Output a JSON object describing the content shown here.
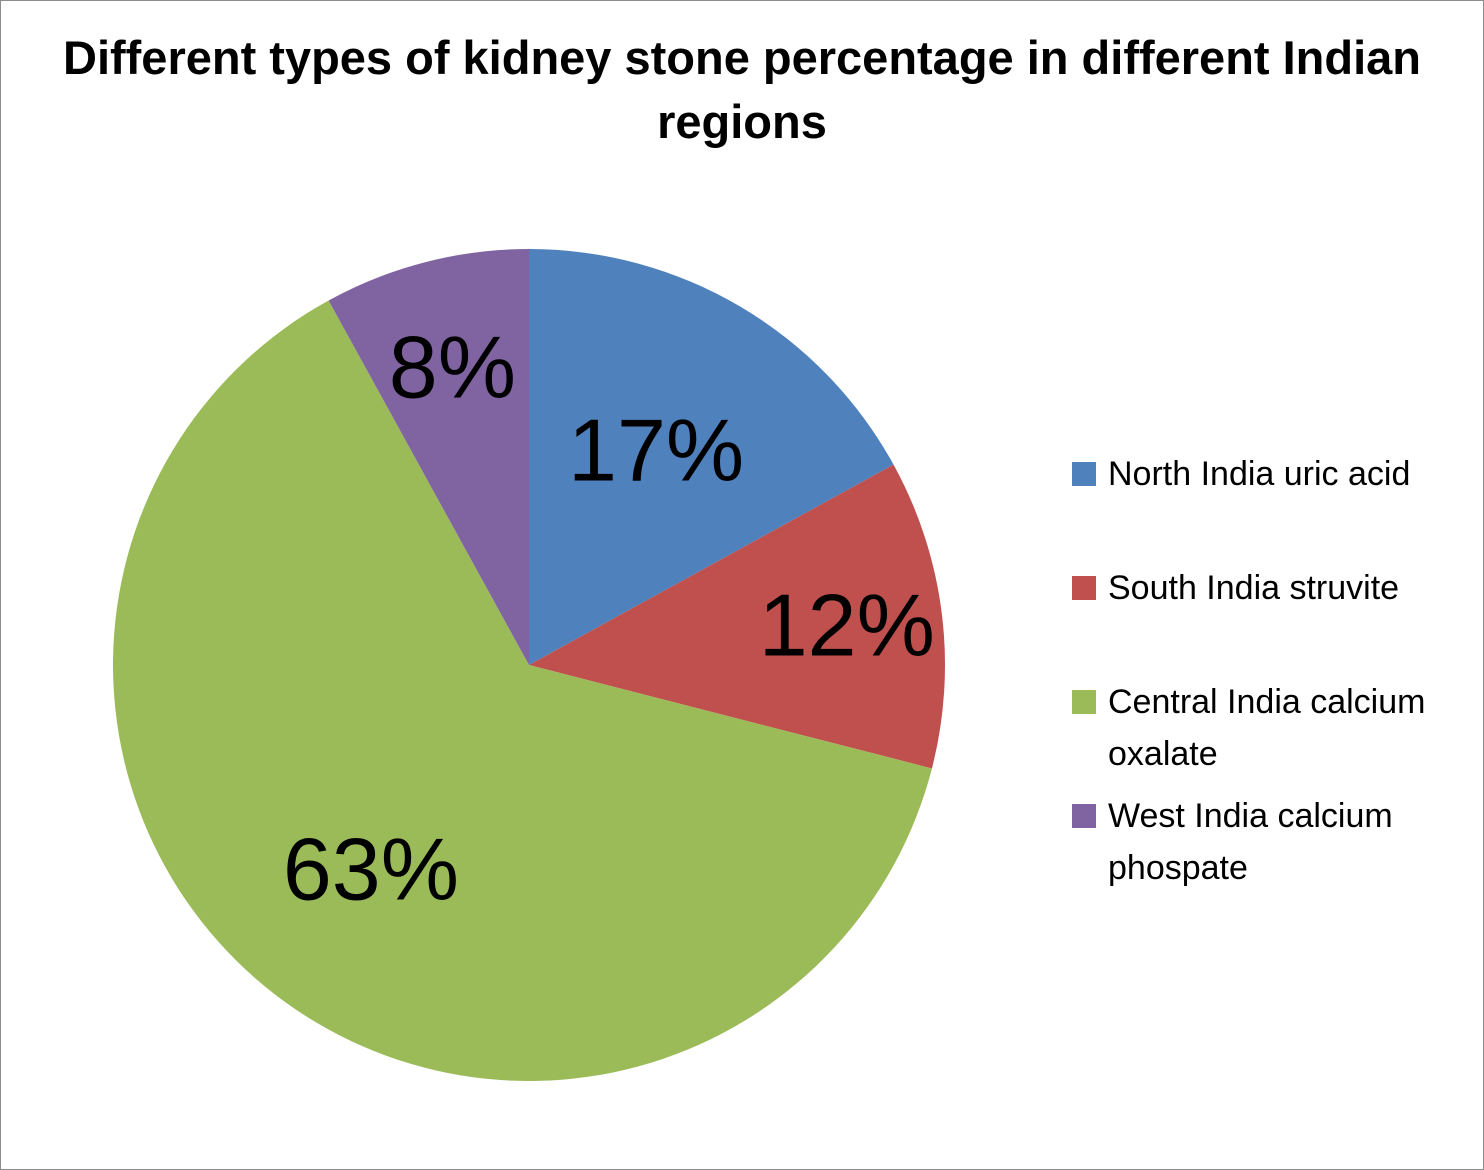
{
  "chart_data": {
    "type": "pie",
    "title": "Different types of kidney stone percentage in different Indian regions",
    "slices": [
      {
        "name": "North India  uric acid",
        "value": 17,
        "label": "17%",
        "color": "#4F81BD"
      },
      {
        "name": "South India  struvite",
        "value": 12,
        "label": "12%",
        "color": "#C0504D"
      },
      {
        "name": "Central India calcium oxalate",
        "value": 63,
        "label": "63%",
        "color": "#9BBB59"
      },
      {
        "name": "West India calcium phospate",
        "value": 8,
        "label": "8%",
        "color": "#8064A2"
      }
    ],
    "legend_position": "right"
  }
}
